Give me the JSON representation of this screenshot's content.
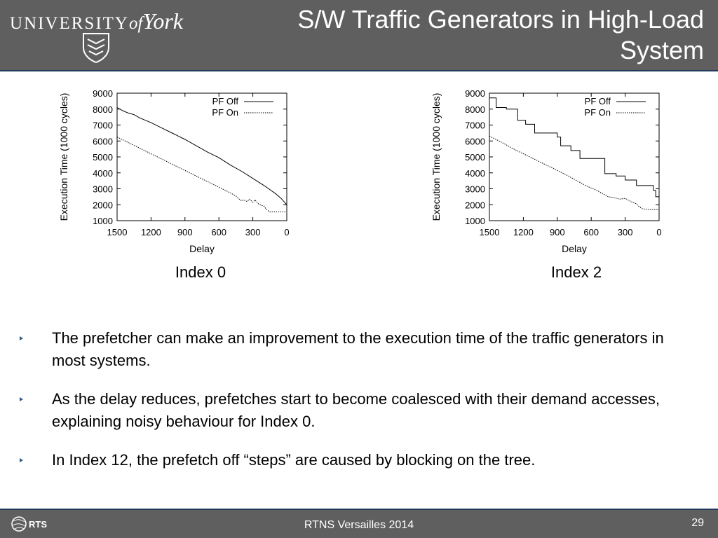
{
  "header": {
    "logo": {
      "text_main": "UNIVERSITY",
      "text_of": "of",
      "text_york": "York"
    },
    "title_line1": "S/W Traffic Generators in High-Load",
    "title_line2": "System"
  },
  "chart_data": [
    {
      "type": "line",
      "caption": "Index 0",
      "xlabel": "Delay",
      "ylabel": "Execution Time (1000 cycles)",
      "xlim": [
        1500,
        0
      ],
      "ylim": [
        1000,
        9000
      ],
      "xticks": [
        1500,
        1200,
        900,
        600,
        300,
        0
      ],
      "yticks": [
        1000,
        2000,
        3000,
        4000,
        5000,
        6000,
        7000,
        8000,
        9000
      ],
      "legend_position": "top-right",
      "series": [
        {
          "name": "PF Off",
          "style": "solid",
          "x": [
            1500,
            1450,
            1400,
            1350,
            1300,
            1250,
            1200,
            1100,
            1000,
            900,
            800,
            700,
            600,
            500,
            400,
            300,
            200,
            100,
            50,
            0
          ],
          "y": [
            8100,
            7900,
            7750,
            7650,
            7450,
            7300,
            7150,
            6800,
            6450,
            6100,
            5700,
            5300,
            4950,
            4500,
            4100,
            3650,
            3200,
            2700,
            2400,
            2000
          ]
        },
        {
          "name": "PF On",
          "style": "dotted",
          "x": [
            1500,
            1400,
            1300,
            1200,
            1100,
            1000,
            900,
            800,
            700,
            600,
            500,
            450,
            420,
            400,
            380,
            350,
            330,
            300,
            280,
            250,
            220,
            200,
            180,
            150,
            100,
            50,
            0
          ],
          "y": [
            6250,
            5900,
            5550,
            5200,
            4850,
            4500,
            4150,
            3800,
            3450,
            3100,
            2750,
            2550,
            2350,
            2250,
            2300,
            2200,
            2350,
            2150,
            2300,
            2050,
            1950,
            1900,
            1700,
            1550,
            1550,
            1550,
            1550
          ]
        }
      ]
    },
    {
      "type": "line",
      "caption": "Index 2",
      "xlabel": "Delay",
      "ylabel": "Execution Time (1000 cycles)",
      "xlim": [
        1500,
        0
      ],
      "ylim": [
        1000,
        9000
      ],
      "xticks": [
        1500,
        1200,
        900,
        600,
        300,
        0
      ],
      "yticks": [
        1000,
        2000,
        3000,
        4000,
        5000,
        6000,
        7000,
        8000,
        9000
      ],
      "legend_position": "top-right",
      "series": [
        {
          "name": "PF Off",
          "style": "solid",
          "x": [
            1500,
            1440,
            1440,
            1350,
            1350,
            1250,
            1250,
            1180,
            1180,
            1100,
            1100,
            900,
            900,
            870,
            870,
            780,
            780,
            700,
            700,
            480,
            480,
            380,
            380,
            300,
            300,
            200,
            200,
            50,
            50,
            30,
            30,
            0
          ],
          "y": [
            8700,
            8700,
            8100,
            8100,
            8000,
            8000,
            7300,
            7300,
            7050,
            7050,
            6500,
            6500,
            6250,
            6250,
            5700,
            5700,
            5400,
            5400,
            4900,
            4900,
            3950,
            3950,
            3800,
            3800,
            3550,
            3550,
            3200,
            3200,
            2900,
            2900,
            2500,
            2500
          ]
        },
        {
          "name": "PF On",
          "style": "dotted",
          "x": [
            1500,
            1400,
            1300,
            1200,
            1100,
            1000,
            900,
            800,
            700,
            650,
            600,
            550,
            500,
            450,
            400,
            350,
            300,
            250,
            200,
            180,
            150,
            100,
            50,
            0
          ],
          "y": [
            6300,
            5950,
            5550,
            5200,
            4850,
            4500,
            4150,
            3800,
            3400,
            3200,
            3050,
            2900,
            2700,
            2500,
            2450,
            2350,
            2400,
            2200,
            2050,
            1900,
            1750,
            1700,
            1700,
            1700
          ]
        }
      ]
    }
  ],
  "bullets": [
    "The prefetcher can make an improvement to the execution time of the traffic generators in most systems.",
    "As the delay reduces, prefetches start to become coalesced with their demand accesses, explaining noisy behaviour for Index 0.",
    "In Index 12, the prefetch off “steps” are caused by blocking on the tree."
  ],
  "footer": {
    "logo_text": "RTS",
    "center_text": "RTNS Versailles 2014",
    "page_number": "29"
  },
  "colors": {
    "header_bg": "#5f5f5f",
    "header_border": "#1f3a5c",
    "bullet": "#2c5a8a"
  }
}
